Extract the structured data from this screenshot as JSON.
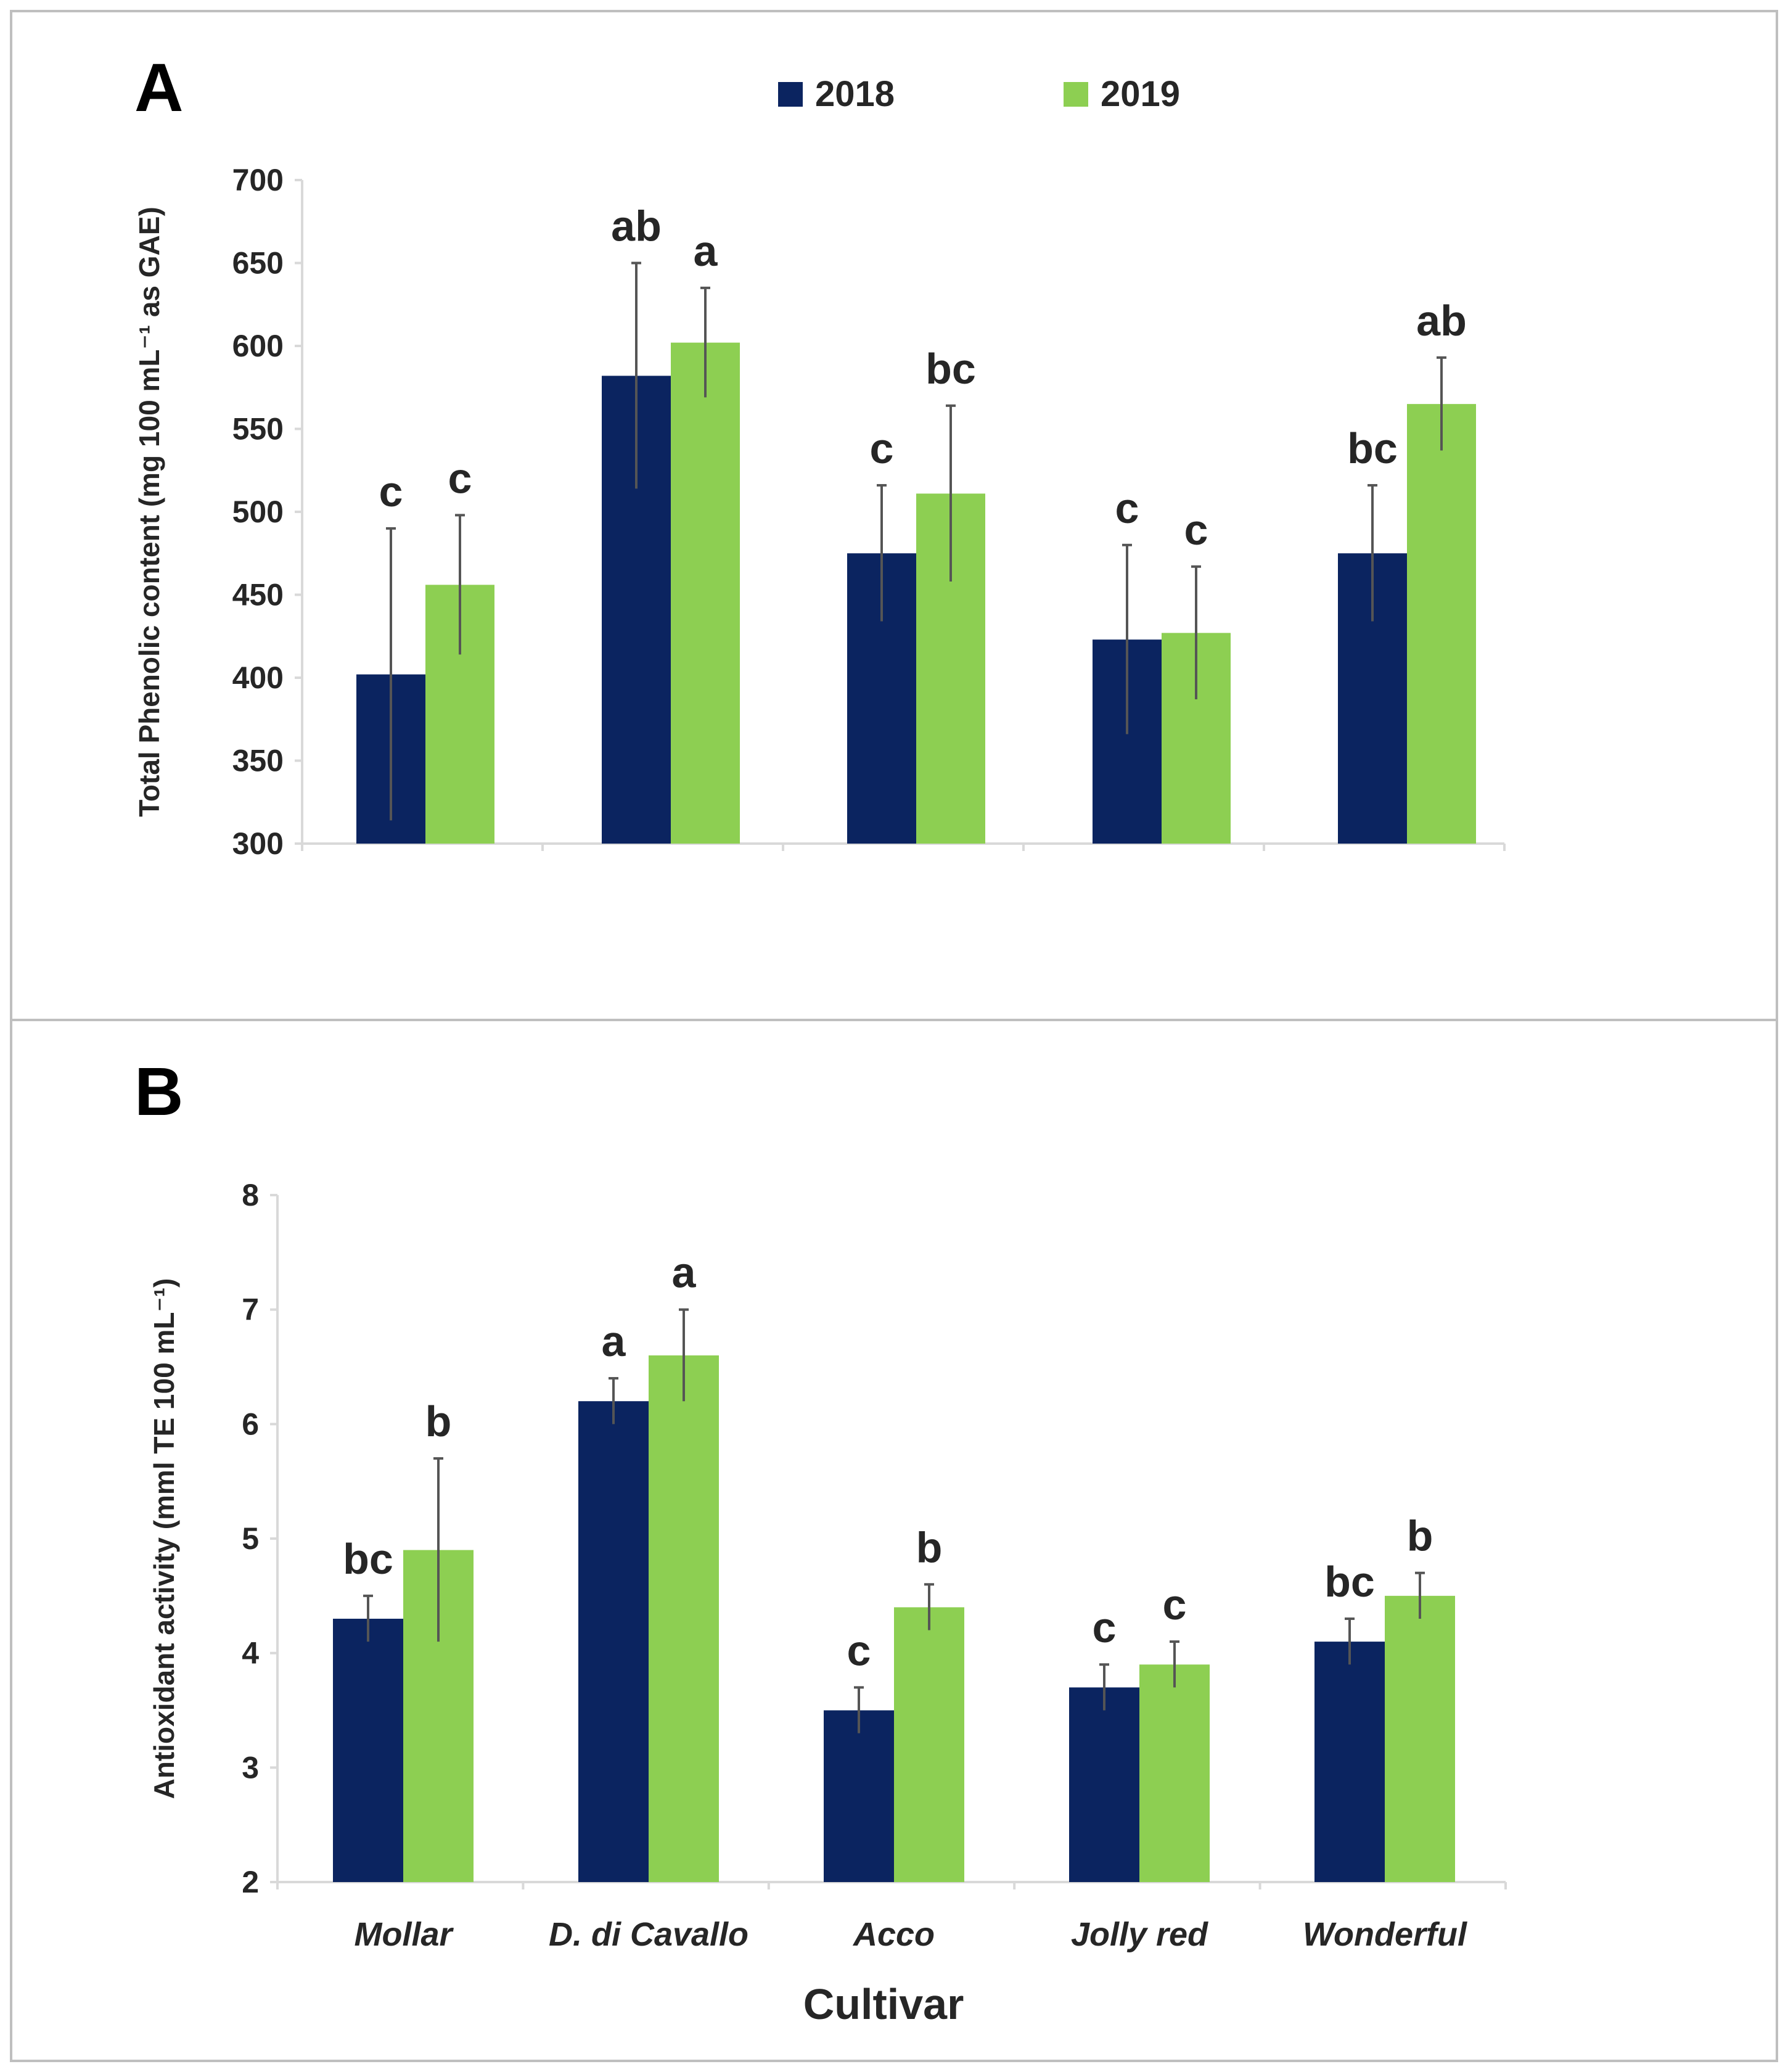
{
  "colors": {
    "y2018": "#0b2460",
    "y2019": "#8dcf52"
  },
  "legend": [
    {
      "label": "2018",
      "color": "#0b2460"
    },
    {
      "label": "2019",
      "color": "#8dcf52"
    }
  ],
  "xlabel": "Cultivar",
  "chart_data": [
    {
      "panel": "A",
      "type": "bar",
      "title": "",
      "ylabel": "Total Phenolic content (mg  100 mL⁻¹ as GAE)",
      "ylim": [
        300,
        700
      ],
      "yticks": [
        300,
        350,
        400,
        450,
        500,
        550,
        600,
        650,
        700
      ],
      "categories": [
        "Mollar",
        "D. di Cavallo",
        "Acco",
        "Jolly red",
        "Wonderful"
      ],
      "series": [
        {
          "name": "2018",
          "values": [
            402,
            582,
            475,
            423,
            475
          ],
          "errors": [
            88,
            68,
            41,
            57,
            41
          ],
          "letters": [
            "c",
            "ab",
            "c",
            "c",
            "bc"
          ]
        },
        {
          "name": "2019",
          "values": [
            456,
            602,
            511,
            427,
            565
          ],
          "errors": [
            42,
            33,
            53,
            40,
            28
          ],
          "letters": [
            "c",
            "a",
            "bc",
            "c",
            "ab"
          ]
        }
      ]
    },
    {
      "panel": "B",
      "type": "bar",
      "title": "",
      "ylabel": "Antioxidant activity (mml TE 100  mL⁻¹)",
      "ylim": [
        2,
        8
      ],
      "yticks": [
        2,
        3,
        4,
        5,
        6,
        7,
        8
      ],
      "categories": [
        "Mollar",
        "D. di Cavallo",
        "Acco",
        "Jolly red",
        "Wonderful"
      ],
      "series": [
        {
          "name": "2018",
          "values": [
            4.3,
            6.2,
            3.5,
            3.7,
            4.1
          ],
          "errors": [
            0.2,
            0.2,
            0.2,
            0.2,
            0.2
          ],
          "letters": [
            "bc",
            "a",
            "c",
            "c",
            "bc"
          ]
        },
        {
          "name": "2019",
          "values": [
            4.9,
            6.6,
            4.4,
            3.9,
            4.5
          ],
          "errors": [
            0.8,
            0.4,
            0.2,
            0.2,
            0.2
          ],
          "letters": [
            "b",
            "a",
            "b",
            "c",
            "b"
          ]
        }
      ]
    }
  ]
}
